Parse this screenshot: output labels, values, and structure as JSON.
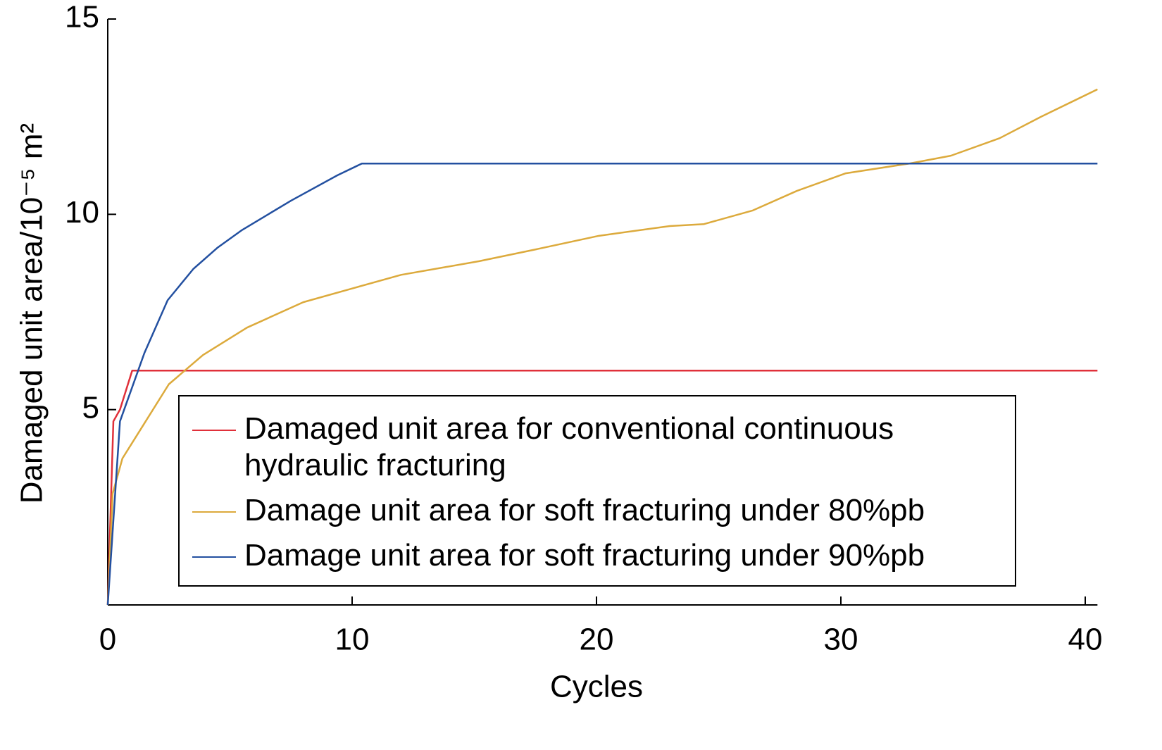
{
  "chart_data": {
    "type": "line",
    "x_label": "Cycles",
    "y_label": "Damaged unit area/10⁻⁵ m²",
    "xlim": [
      0,
      40.5
    ],
    "ylim": [
      0,
      15
    ],
    "xticks": [
      0,
      10,
      20,
      30,
      40
    ],
    "yticks": [
      5,
      10,
      15
    ],
    "legend": "inside",
    "series": [
      {
        "name": "Damaged unit area for conventional continuous hydraulic fracturing",
        "color": "#e0303a",
        "x": [
          0,
          0.23,
          0.5,
          1.0,
          40.5
        ],
        "values": [
          0,
          4.7,
          5.0,
          6.0,
          6.0
        ]
      },
      {
        "name": "Damage unit area for soft fracturing under 80%pb",
        "color": "#dcaa3c",
        "x": [
          0,
          0.2,
          0.6,
          1.35,
          2.5,
          3.9,
          5.7,
          8,
          10,
          12,
          15.2,
          17.5,
          20.1,
          23,
          24.4,
          26.4,
          28.2,
          30.2,
          32.8,
          34.5,
          36.5,
          38.2,
          40.5
        ],
        "values": [
          0,
          2.85,
          3.75,
          4.5,
          5.65,
          6.4,
          7.1,
          7.75,
          8.1,
          8.45,
          8.8,
          9.1,
          9.45,
          9.7,
          9.75,
          10.1,
          10.6,
          11.05,
          11.3,
          11.5,
          11.95,
          12.5,
          13.2
        ]
      },
      {
        "name": "Damage unit area for soft fracturing under 90%pb",
        "color": "#2350a0",
        "x": [
          0,
          0.5,
          1.5,
          2.45,
          3.5,
          4.5,
          5.5,
          7.5,
          9.4,
          10.4,
          40.5
        ],
        "values": [
          0,
          4.7,
          6.45,
          7.8,
          8.6,
          9.15,
          9.6,
          10.35,
          11.0,
          11.3,
          11.3
        ]
      }
    ]
  }
}
